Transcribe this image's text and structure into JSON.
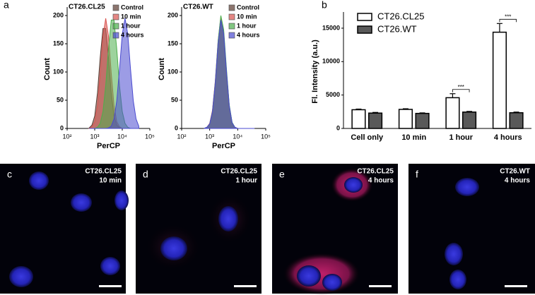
{
  "chart_data": [
    {
      "type": "area",
      "label": "a",
      "title": "CT26.CL25",
      "xlabel": "PerCP",
      "ylabel": "Count",
      "xscale": "log",
      "xlim": [
        100,
        100000
      ],
      "xticks": [
        {
          "value": 100,
          "label": "10²"
        },
        {
          "value": 1000,
          "label": "10³"
        },
        {
          "value": 10000,
          "label": "10⁴"
        },
        {
          "value": 100000,
          "label": "10⁵"
        }
      ],
      "ylim": [
        0,
        210
      ],
      "yticks": [
        0,
        50,
        100,
        150,
        200
      ],
      "legend": "upper right",
      "x": [
        631,
        794,
        1000,
        1259,
        1585,
        1995,
        2512,
        3162,
        3981,
        5012,
        6310,
        7943,
        10000,
        12589,
        15849,
        19953,
        25119,
        31623,
        39811
      ],
      "series": [
        {
          "name": "Control",
          "color": "#5b3a30",
          "values": [
            1,
            6,
            22,
            63,
            126,
            177,
            177,
            126,
            63,
            22,
            6,
            1,
            0,
            0,
            0,
            0,
            0,
            0,
            0
          ]
        },
        {
          "name": "10 min",
          "color": "#d9534f",
          "values": [
            0,
            3,
            12,
            41,
            98,
            164,
            195,
            164,
            98,
            41,
            12,
            3,
            0,
            0,
            0,
            0,
            0,
            0,
            0
          ]
        },
        {
          "name": "1 hour",
          "color": "#4cae4c",
          "values": [
            0,
            0,
            0,
            2,
            9,
            30,
            76,
            141,
            192,
            192,
            141,
            76,
            30,
            9,
            2,
            0,
            0,
            0,
            0
          ]
        },
        {
          "name": "4 hours",
          "color": "#4a4ad0",
          "values": [
            0,
            0,
            0,
            0,
            0,
            0,
            0,
            1,
            4,
            17,
            49,
            105,
            167,
            195,
            167,
            105,
            49,
            17,
            4
          ]
        }
      ]
    },
    {
      "type": "area",
      "title": "CT26.WT",
      "xlabel": "PerCP",
      "ylabel": "Count",
      "xscale": "log",
      "xlim": [
        100,
        100000
      ],
      "xticks": [
        {
          "value": 100,
          "label": "10²"
        },
        {
          "value": 1000,
          "label": "10³"
        },
        {
          "value": 10000,
          "label": "10⁴"
        },
        {
          "value": 100000,
          "label": "10⁵"
        }
      ],
      "ylim": [
        0,
        210
      ],
      "yticks": [
        0,
        50,
        100,
        150,
        200
      ],
      "legend": "upper right",
      "x": [
        631,
        794,
        1000,
        1259,
        1585,
        1995,
        2512,
        3162,
        3981,
        5012,
        6310,
        7943,
        10000,
        12589,
        15849,
        19953,
        25119,
        31623,
        39811
      ],
      "series": [
        {
          "name": "Control",
          "color": "#5b3a30",
          "values": [
            0,
            2,
            8,
            30,
            80,
            150,
            195,
            170,
            100,
            40,
            10,
            2,
            0,
            0,
            0,
            0,
            0,
            0,
            0
          ]
        },
        {
          "name": "10 min",
          "color": "#d9534f",
          "values": [
            0,
            2,
            9,
            32,
            84,
            155,
            198,
            168,
            98,
            38,
            9,
            2,
            0,
            0,
            0,
            0,
            0,
            0,
            0
          ]
        },
        {
          "name": "1 hour",
          "color": "#4cae4c",
          "values": [
            0,
            2,
            8,
            30,
            82,
            155,
            200,
            175,
            105,
            42,
            11,
            2,
            0,
            0,
            0,
            0,
            0,
            0,
            0
          ]
        },
        {
          "name": "4 hours",
          "color": "#4a4ad0",
          "values": [
            0,
            2,
            8,
            29,
            80,
            150,
            192,
            168,
            100,
            40,
            10,
            2,
            0,
            0,
            0,
            0,
            0,
            0,
            0
          ]
        }
      ]
    },
    {
      "type": "bar",
      "label": "b",
      "ylabel": "Fl. Intensity (a.u.)",
      "categories": [
        "Cell only",
        "10 min",
        "1 hour",
        "4 hours"
      ],
      "ylim": [
        0,
        17000
      ],
      "yticks": [
        0,
        5000,
        10000,
        15000
      ],
      "legend": "upper left",
      "significance": [
        null,
        null,
        "***",
        "***"
      ],
      "series": [
        {
          "name": "CT26.CL25",
          "color": "#ffffff",
          "values": [
            2800,
            2850,
            4600,
            14400
          ],
          "errors": [
            100,
            100,
            600,
            1300
          ]
        },
        {
          "name": "CT26.WT",
          "color": "#595959",
          "values": [
            2300,
            2250,
            2450,
            2350
          ],
          "errors": [
            100,
            80,
            100,
            100
          ]
        }
      ]
    }
  ],
  "images": [
    {
      "label": "c",
      "cell_line": "CT26.CL25",
      "time": "10 min"
    },
    {
      "label": "d",
      "cell_line": "CT26.CL25",
      "time": "1 hour"
    },
    {
      "label": "e",
      "cell_line": "CT26.CL25",
      "time": "4 hours"
    },
    {
      "label": "f",
      "cell_line": "CT26.WT",
      "time": "4 hours"
    }
  ]
}
